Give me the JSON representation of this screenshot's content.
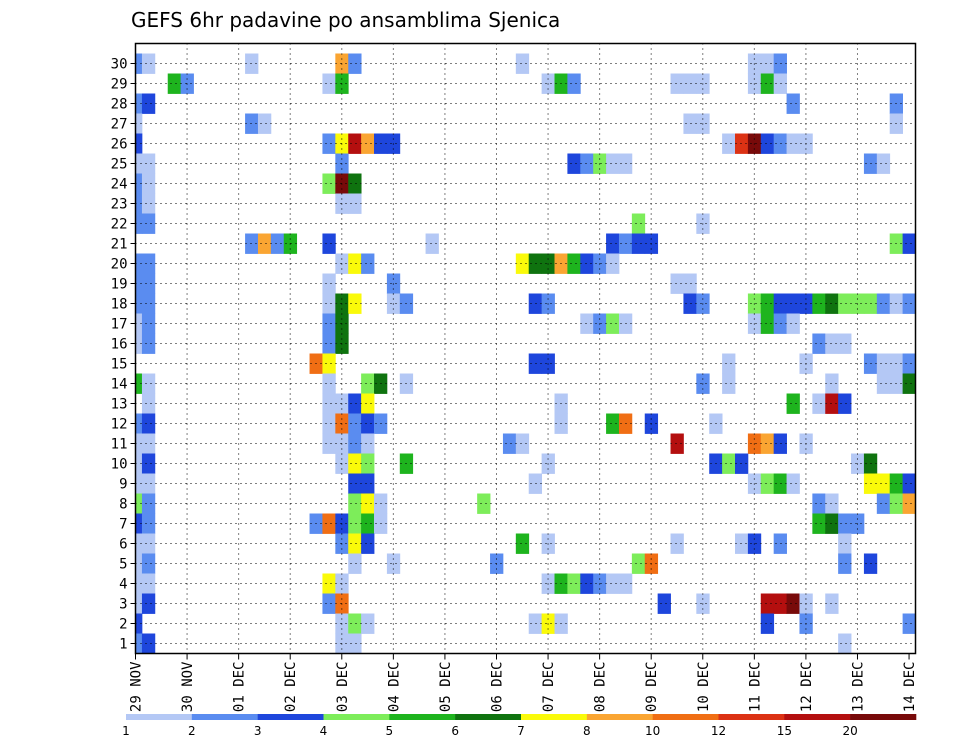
{
  "chart_data": {
    "type": "heatmap",
    "title": "GEFS 6hr padavine po ansamblima Sjenica",
    "xlabel": "",
    "ylabel": "",
    "x_tick_labels": [
      "29 NOV",
      "30 NOV",
      "01 DEC",
      "02 DEC",
      "03 DEC",
      "04 DEC",
      "05 DEC",
      "06 DEC",
      "07 DEC",
      "08 DEC",
      "09 DEC",
      "10 DEC",
      "11 DEC",
      "12 DEC",
      "13 DEC",
      "14 DEC"
    ],
    "y_tick_labels": [
      "1",
      "2",
      "3",
      "4",
      "5",
      "6",
      "7",
      "8",
      "9",
      "10",
      "11",
      "12",
      "13",
      "14",
      "15",
      "16",
      "17",
      "18",
      "19",
      "20",
      "21",
      "22",
      "23",
      "24",
      "25",
      "26",
      "27",
      "28",
      "29",
      "30"
    ],
    "time_steps": 61,
    "members": 30,
    "grid": true,
    "colorbar": {
      "labels": [
        "1",
        "2",
        "3",
        "4",
        "5",
        "6",
        "7",
        "8",
        "10",
        "12",
        "15",
        "20"
      ],
      "colors": [
        "#b4c8f5",
        "#5a8cf0",
        "#1e46dc",
        "#7ded5a",
        "#1eb41e",
        "#0f730f",
        "#fafa0a",
        "#faa532",
        "#f06e14",
        "#dc3214",
        "#b40f0f",
        "#780a0a"
      ]
    },
    "cells": [
      [
        29,
        0,
        2
      ],
      [
        29,
        1,
        1
      ],
      [
        29,
        9,
        1
      ],
      [
        29,
        16,
        8
      ],
      [
        29,
        17,
        2
      ],
      [
        29,
        30,
        1
      ],
      [
        29,
        48,
        1
      ],
      [
        29,
        49,
        1
      ],
      [
        29,
        50,
        2
      ],
      [
        28,
        3,
        5
      ],
      [
        28,
        4,
        2
      ],
      [
        28,
        15,
        1
      ],
      [
        28,
        16,
        5
      ],
      [
        28,
        32,
        1
      ],
      [
        28,
        33,
        5
      ],
      [
        28,
        34,
        2
      ],
      [
        28,
        42,
        1
      ],
      [
        28,
        43,
        1
      ],
      [
        28,
        44,
        1
      ],
      [
        28,
        48,
        1
      ],
      [
        28,
        49,
        5
      ],
      [
        28,
        50,
        1
      ],
      [
        27,
        0,
        2
      ],
      [
        27,
        1,
        3
      ],
      [
        27,
        51,
        2
      ],
      [
        27,
        59,
        2
      ],
      [
        26,
        0,
        1
      ],
      [
        26,
        9,
        2
      ],
      [
        26,
        10,
        1
      ],
      [
        26,
        43,
        1
      ],
      [
        26,
        44,
        1
      ],
      [
        26,
        59,
        1
      ],
      [
        25,
        0,
        3
      ],
      [
        25,
        15,
        2
      ],
      [
        25,
        16,
        7
      ],
      [
        25,
        17,
        11
      ],
      [
        25,
        18,
        8
      ],
      [
        25,
        19,
        3
      ],
      [
        25,
        20,
        3
      ],
      [
        25,
        46,
        1
      ],
      [
        25,
        47,
        10
      ],
      [
        25,
        48,
        12
      ],
      [
        25,
        49,
        3
      ],
      [
        25,
        50,
        2
      ],
      [
        25,
        51,
        1
      ],
      [
        25,
        52,
        1
      ],
      [
        24,
        0,
        1
      ],
      [
        24,
        1,
        1
      ],
      [
        24,
        16,
        2
      ],
      [
        24,
        34,
        3
      ],
      [
        24,
        35,
        2
      ],
      [
        24,
        36,
        4
      ],
      [
        24,
        37,
        1
      ],
      [
        24,
        38,
        1
      ],
      [
        24,
        57,
        2
      ],
      [
        24,
        58,
        1
      ],
      [
        23,
        0,
        2
      ],
      [
        23,
        1,
        1
      ],
      [
        23,
        15,
        4
      ],
      [
        23,
        16,
        12
      ],
      [
        23,
        17,
        6
      ],
      [
        22,
        0,
        2
      ],
      [
        22,
        1,
        1
      ],
      [
        22,
        16,
        1
      ],
      [
        22,
        17,
        1
      ],
      [
        21,
        0,
        2
      ],
      [
        21,
        1,
        2
      ],
      [
        21,
        39,
        4
      ],
      [
        21,
        44,
        1
      ],
      [
        20,
        9,
        2
      ],
      [
        20,
        10,
        8
      ],
      [
        20,
        11,
        2
      ],
      [
        20,
        12,
        5
      ],
      [
        20,
        15,
        3
      ],
      [
        20,
        23,
        1
      ],
      [
        20,
        37,
        3
      ],
      [
        20,
        38,
        2
      ],
      [
        20,
        39,
        3
      ],
      [
        20,
        40,
        3
      ],
      [
        20,
        59,
        4
      ],
      [
        20,
        60,
        3
      ],
      [
        19,
        0,
        2
      ],
      [
        19,
        1,
        2
      ],
      [
        19,
        16,
        1
      ],
      [
        19,
        17,
        7
      ],
      [
        19,
        18,
        2
      ],
      [
        19,
        30,
        7
      ],
      [
        19,
        31,
        6
      ],
      [
        19,
        32,
        6
      ],
      [
        19,
        33,
        8
      ],
      [
        19,
        34,
        5
      ],
      [
        19,
        35,
        3
      ],
      [
        19,
        36,
        2
      ],
      [
        19,
        37,
        1
      ],
      [
        18,
        0,
        2
      ],
      [
        18,
        1,
        2
      ],
      [
        18,
        15,
        1
      ],
      [
        18,
        20,
        2
      ],
      [
        18,
        42,
        1
      ],
      [
        18,
        43,
        1
      ],
      [
        17,
        0,
        2
      ],
      [
        17,
        1,
        2
      ],
      [
        17,
        15,
        1
      ],
      [
        17,
        16,
        6
      ],
      [
        17,
        17,
        7
      ],
      [
        17,
        20,
        1
      ],
      [
        17,
        21,
        2
      ],
      [
        17,
        31,
        3
      ],
      [
        17,
        32,
        2
      ],
      [
        17,
        43,
        3
      ],
      [
        17,
        44,
        2
      ],
      [
        17,
        48,
        4
      ],
      [
        17,
        49,
        5
      ],
      [
        17,
        50,
        3
      ],
      [
        17,
        51,
        3
      ],
      [
        17,
        52,
        3
      ],
      [
        17,
        53,
        5
      ],
      [
        17,
        54,
        6
      ],
      [
        17,
        55,
        4
      ],
      [
        17,
        56,
        4
      ],
      [
        17,
        57,
        4
      ],
      [
        17,
        58,
        2
      ],
      [
        17,
        59,
        1
      ],
      [
        17,
        60,
        2
      ],
      [
        16,
        0,
        1
      ],
      [
        16,
        1,
        2
      ],
      [
        16,
        15,
        2
      ],
      [
        16,
        16,
        6
      ],
      [
        16,
        35,
        1
      ],
      [
        16,
        36,
        2
      ],
      [
        16,
        37,
        4
      ],
      [
        16,
        38,
        1
      ],
      [
        16,
        48,
        1
      ],
      [
        16,
        49,
        5
      ],
      [
        16,
        50,
        2
      ],
      [
        16,
        51,
        1
      ],
      [
        15,
        0,
        1
      ],
      [
        15,
        1,
        2
      ],
      [
        15,
        15,
        2
      ],
      [
        15,
        16,
        6
      ],
      [
        15,
        53,
        2
      ],
      [
        15,
        54,
        1
      ],
      [
        15,
        55,
        1
      ],
      [
        14,
        14,
        9
      ],
      [
        14,
        15,
        7
      ],
      [
        14,
        31,
        3
      ],
      [
        14,
        32,
        3
      ],
      [
        14,
        46,
        1
      ],
      [
        14,
        52,
        1
      ],
      [
        14,
        57,
        2
      ],
      [
        14,
        58,
        1
      ],
      [
        14,
        59,
        1
      ],
      [
        14,
        60,
        2
      ],
      [
        13,
        0,
        5
      ],
      [
        13,
        1,
        1
      ],
      [
        13,
        15,
        1
      ],
      [
        13,
        18,
        4
      ],
      [
        13,
        19,
        6
      ],
      [
        13,
        21,
        1
      ],
      [
        13,
        44,
        2
      ],
      [
        13,
        46,
        1
      ],
      [
        13,
        54,
        1
      ],
      [
        13,
        58,
        1
      ],
      [
        13,
        59,
        1
      ],
      [
        13,
        60,
        6
      ],
      [
        12,
        1,
        1
      ],
      [
        12,
        15,
        1
      ],
      [
        12,
        16,
        1
      ],
      [
        12,
        17,
        3
      ],
      [
        12,
        18,
        7
      ],
      [
        12,
        33,
        1
      ],
      [
        12,
        51,
        5
      ],
      [
        12,
        53,
        1
      ],
      [
        12,
        54,
        11
      ],
      [
        12,
        55,
        3
      ],
      [
        11,
        0,
        2
      ],
      [
        11,
        1,
        3
      ],
      [
        11,
        15,
        1
      ],
      [
        11,
        16,
        9
      ],
      [
        11,
        17,
        2
      ],
      [
        11,
        18,
        3
      ],
      [
        11,
        19,
        2
      ],
      [
        11,
        33,
        1
      ],
      [
        11,
        37,
        5
      ],
      [
        11,
        38,
        9
      ],
      [
        11,
        40,
        3
      ],
      [
        11,
        45,
        1
      ],
      [
        10,
        0,
        1
      ],
      [
        10,
        1,
        1
      ],
      [
        10,
        15,
        1
      ],
      [
        10,
        16,
        1
      ],
      [
        10,
        17,
        2
      ],
      [
        10,
        18,
        1
      ],
      [
        10,
        29,
        2
      ],
      [
        10,
        30,
        1
      ],
      [
        10,
        42,
        11
      ],
      [
        10,
        48,
        9
      ],
      [
        10,
        49,
        8
      ],
      [
        10,
        50,
        3
      ],
      [
        10,
        52,
        1
      ],
      [
        9,
        0,
        1
      ],
      [
        9,
        1,
        3
      ],
      [
        9,
        16,
        1
      ],
      [
        9,
        17,
        7
      ],
      [
        9,
        18,
        4
      ],
      [
        9,
        21,
        5
      ],
      [
        9,
        32,
        1
      ],
      [
        9,
        45,
        3
      ],
      [
        9,
        46,
        4
      ],
      [
        9,
        47,
        3
      ],
      [
        9,
        56,
        1
      ],
      [
        9,
        57,
        6
      ],
      [
        8,
        0,
        1
      ],
      [
        8,
        1,
        1
      ],
      [
        8,
        17,
        3
      ],
      [
        8,
        18,
        3
      ],
      [
        8,
        31,
        1
      ],
      [
        8,
        48,
        1
      ],
      [
        8,
        49,
        4
      ],
      [
        8,
        50,
        5
      ],
      [
        8,
        51,
        1
      ],
      [
        8,
        57,
        7
      ],
      [
        8,
        58,
        7
      ],
      [
        8,
        59,
        5
      ],
      [
        8,
        60,
        3
      ],
      [
        7,
        0,
        4
      ],
      [
        7,
        1,
        2
      ],
      [
        7,
        17,
        4
      ],
      [
        7,
        18,
        7
      ],
      [
        7,
        19,
        1
      ],
      [
        7,
        27,
        4
      ],
      [
        7,
        53,
        2
      ],
      [
        7,
        54,
        1
      ],
      [
        7,
        58,
        2
      ],
      [
        7,
        59,
        4
      ],
      [
        7,
        60,
        8
      ],
      [
        6,
        0,
        3
      ],
      [
        6,
        1,
        2
      ],
      [
        6,
        14,
        2
      ],
      [
        6,
        15,
        9
      ],
      [
        6,
        16,
        3
      ],
      [
        6,
        17,
        4
      ],
      [
        6,
        18,
        5
      ],
      [
        6,
        19,
        1
      ],
      [
        6,
        53,
        5
      ],
      [
        6,
        54,
        6
      ],
      [
        6,
        55,
        2
      ],
      [
        6,
        56,
        2
      ],
      [
        5,
        0,
        1
      ],
      [
        5,
        1,
        1
      ],
      [
        5,
        16,
        2
      ],
      [
        5,
        17,
        7
      ],
      [
        5,
        18,
        3
      ],
      [
        5,
        30,
        5
      ],
      [
        5,
        32,
        1
      ],
      [
        5,
        42,
        1
      ],
      [
        5,
        47,
        1
      ],
      [
        5,
        48,
        3
      ],
      [
        5,
        50,
        2
      ],
      [
        5,
        55,
        1
      ],
      [
        4,
        0,
        1
      ],
      [
        4,
        1,
        2
      ],
      [
        4,
        17,
        1
      ],
      [
        4,
        20,
        1
      ],
      [
        4,
        28,
        2
      ],
      [
        4,
        39,
        4
      ],
      [
        4,
        40,
        9
      ],
      [
        4,
        55,
        2
      ],
      [
        4,
        57,
        3
      ],
      [
        3,
        0,
        1
      ],
      [
        3,
        1,
        1
      ],
      [
        3,
        15,
        7
      ],
      [
        3,
        16,
        1
      ],
      [
        3,
        32,
        1
      ],
      [
        3,
        33,
        5
      ],
      [
        3,
        34,
        4
      ],
      [
        3,
        35,
        3
      ],
      [
        3,
        36,
        2
      ],
      [
        3,
        37,
        1
      ],
      [
        3,
        38,
        1
      ],
      [
        2,
        0,
        1
      ],
      [
        2,
        1,
        3
      ],
      [
        2,
        15,
        2
      ],
      [
        2,
        16,
        9
      ],
      [
        2,
        41,
        3
      ],
      [
        2,
        44,
        1
      ],
      [
        2,
        49,
        11
      ],
      [
        2,
        50,
        11
      ],
      [
        2,
        51,
        12
      ],
      [
        2,
        52,
        1
      ],
      [
        2,
        54,
        1
      ],
      [
        1,
        0,
        3
      ],
      [
        1,
        16,
        1
      ],
      [
        1,
        17,
        4
      ],
      [
        1,
        18,
        1
      ],
      [
        1,
        31,
        1
      ],
      [
        1,
        32,
        7
      ],
      [
        1,
        33,
        1
      ],
      [
        1,
        49,
        3
      ],
      [
        1,
        52,
        2
      ],
      [
        1,
        60,
        2
      ],
      [
        0,
        0,
        2
      ],
      [
        0,
        1,
        3
      ],
      [
        0,
        16,
        1
      ],
      [
        0,
        17,
        1
      ],
      [
        0,
        55,
        1
      ]
    ]
  }
}
